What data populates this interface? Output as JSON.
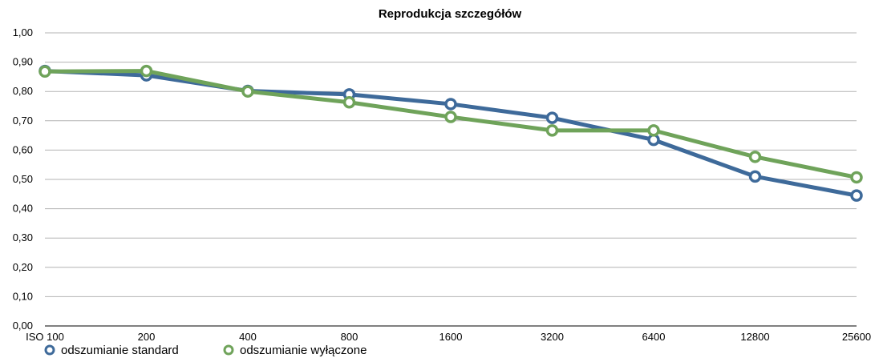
{
  "chart_data": {
    "type": "line",
    "title": "Reprodukcja szczegółów",
    "xlabel": "",
    "ylabel": "",
    "categories": [
      "ISO 100",
      "200",
      "400",
      "800",
      "1600",
      "3200",
      "6400",
      "12800",
      "25600"
    ],
    "ylim": [
      0,
      1
    ],
    "yticks": [
      "0,00",
      "0,10",
      "0,20",
      "0,30",
      "0,40",
      "0,50",
      "0,60",
      "0,70",
      "0,80",
      "0,90",
      "1,00"
    ],
    "grid": true,
    "legend_position": "bottom-left",
    "series": [
      {
        "name": "odszumianie standard",
        "color": "#3e6a9a",
        "values": [
          0.87,
          0.855,
          0.802,
          0.79,
          0.757,
          0.71,
          0.635,
          0.51,
          0.445
        ]
      },
      {
        "name": "odszumianie wyłączone",
        "color": "#6fa35a",
        "values": [
          0.868,
          0.87,
          0.8,
          0.763,
          0.713,
          0.667,
          0.667,
          0.577,
          0.507
        ]
      }
    ]
  }
}
